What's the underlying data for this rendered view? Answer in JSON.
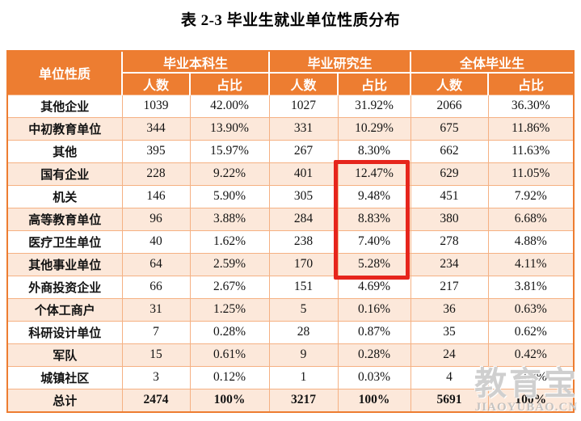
{
  "title": "表 2-3  毕业生就业单位性质分布",
  "colors": {
    "header_bg": "#ed7d31",
    "frame_border": "#ed7d31",
    "grid_border": "#f5b183",
    "alt_row_bg": "#fce8da",
    "highlight": "#e6251c"
  },
  "table": {
    "header": {
      "unit_type": "单位性质",
      "groups": [
        {
          "label": "毕业本科生"
        },
        {
          "label": "毕业研究生"
        },
        {
          "label": "全体毕业生"
        }
      ],
      "sub_count": "人数",
      "sub_ratio": "占比"
    },
    "rows": [
      {
        "label": "其他企业",
        "values": [
          "1039",
          "42.00%",
          "1027",
          "31.92%",
          "2066",
          "36.30%"
        ]
      },
      {
        "label": "中初教育单位",
        "values": [
          "344",
          "13.90%",
          "331",
          "10.29%",
          "675",
          "11.86%"
        ]
      },
      {
        "label": "其他",
        "values": [
          "395",
          "15.97%",
          "267",
          "8.30%",
          "662",
          "11.63%"
        ]
      },
      {
        "label": "国有企业",
        "values": [
          "228",
          "9.22%",
          "401",
          "12.47%",
          "629",
          "11.05%"
        ]
      },
      {
        "label": "机关",
        "values": [
          "146",
          "5.90%",
          "305",
          "9.48%",
          "451",
          "7.92%"
        ]
      },
      {
        "label": "高等教育单位",
        "values": [
          "96",
          "3.88%",
          "284",
          "8.83%",
          "380",
          "6.68%"
        ]
      },
      {
        "label": "医疗卫生单位",
        "values": [
          "40",
          "1.62%",
          "238",
          "7.40%",
          "278",
          "4.88%"
        ]
      },
      {
        "label": "其他事业单位",
        "values": [
          "64",
          "2.59%",
          "170",
          "5.28%",
          "234",
          "4.11%"
        ]
      },
      {
        "label": "外商投资企业",
        "values": [
          "66",
          "2.67%",
          "151",
          "4.69%",
          "217",
          "3.81%"
        ]
      },
      {
        "label": "个体工商户",
        "values": [
          "31",
          "1.25%",
          "5",
          "0.16%",
          "36",
          "0.63%"
        ]
      },
      {
        "label": "科研设计单位",
        "values": [
          "7",
          "0.28%",
          "28",
          "0.87%",
          "35",
          "0.62%"
        ]
      },
      {
        "label": "军队",
        "values": [
          "15",
          "0.61%",
          "9",
          "0.28%",
          "24",
          "0.42%"
        ]
      },
      {
        "label": "城镇社区",
        "values": [
          "3",
          "0.12%",
          "1",
          "0.03%",
          "4",
          "0.07%"
        ]
      },
      {
        "label": "总计",
        "values": [
          "2474",
          "100%",
          "3217",
          "100%",
          "5691",
          "100%"
        ],
        "bold": true
      }
    ]
  },
  "highlight_note": "研究生占比 12.47%–5.28% 区域红框标注",
  "watermark": {
    "text": "教育宝",
    "subtext": "JIAOYUBAO.CN"
  }
}
